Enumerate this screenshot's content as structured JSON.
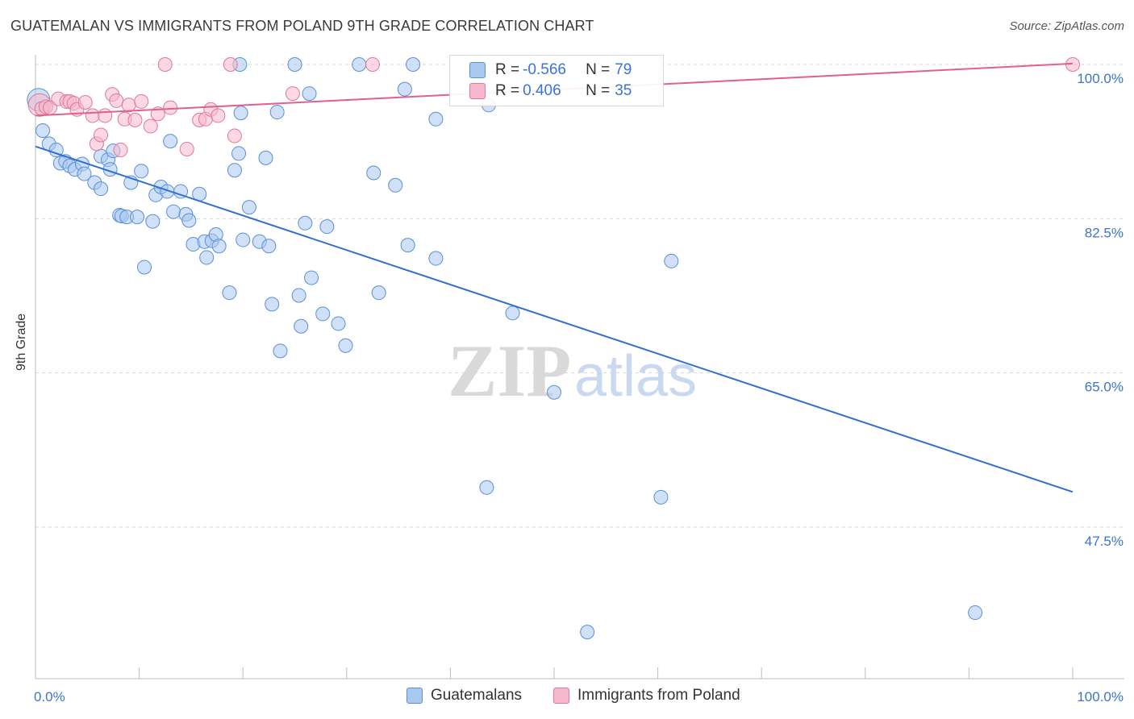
{
  "title": "GUATEMALAN VS IMMIGRANTS FROM POLAND 9TH GRADE CORRELATION CHART",
  "source": "Source: ZipAtlas.com",
  "watermark": {
    "zip": "ZIP",
    "atlas": "atlas"
  },
  "legend_top": [
    {
      "r_label": "R =",
      "r_value": "-0.566",
      "n_label": "N =",
      "n_value": "79",
      "color": "#a9c8f0",
      "stroke": "#5a8fd6"
    },
    {
      "r_label": "R =",
      "r_value": "0.406",
      "n_label": "N =",
      "n_value": "35",
      "color": "#f7b8cc",
      "stroke": "#e07898"
    }
  ],
  "legend_bottom": [
    {
      "label": "Guatemalans",
      "color": "#a9c8f0",
      "stroke": "#5a8fd6"
    },
    {
      "label": "Immigrants from Poland",
      "color": "#f7b8cc",
      "stroke": "#e07898"
    }
  ],
  "chart_data": {
    "type": "scatter",
    "title": "GUATEMALAN VS IMMIGRANTS FROM POLAND 9TH GRADE CORRELATION CHART",
    "xlabel": "",
    "ylabel": "9th Grade",
    "xlim": [
      0,
      100
    ],
    "ylim": [
      32,
      102
    ],
    "x_tick_labels": [
      "0.0%",
      "100.0%"
    ],
    "y_ticks": [
      {
        "value": 100,
        "label": "100.0%"
      },
      {
        "value": 82.5,
        "label": "82.5%"
      },
      {
        "value": 65,
        "label": "65.0%"
      },
      {
        "value": 47.5,
        "label": "47.5%"
      }
    ],
    "grid": true,
    "series": [
      {
        "name": "Guatemalans",
        "color": "#5a8fd6",
        "fill": "#a9c8f0",
        "trend": {
          "x": [
            0,
            100
          ],
          "y": [
            90.7,
            51.5
          ],
          "color": "#2f6fd0"
        },
        "points": [
          [
            0.3,
            96.0
          ],
          [
            0.7,
            92.5
          ],
          [
            1.3,
            91.0
          ],
          [
            2.0,
            90.3
          ],
          [
            2.4,
            88.8
          ],
          [
            2.9,
            89.0
          ],
          [
            3.3,
            88.5
          ],
          [
            3.8,
            88.1
          ],
          [
            4.5,
            88.7
          ],
          [
            4.7,
            87.6
          ],
          [
            5.7,
            86.6
          ],
          [
            6.3,
            85.9
          ],
          [
            6.3,
            89.6
          ],
          [
            7.0,
            89.2
          ],
          [
            7.2,
            88.1
          ],
          [
            7.5,
            90.2
          ],
          [
            8.1,
            82.9
          ],
          [
            8.3,
            82.8
          ],
          [
            8.8,
            82.7
          ],
          [
            9.2,
            86.6
          ],
          [
            9.8,
            82.7
          ],
          [
            10.2,
            87.9
          ],
          [
            10.5,
            77.0
          ],
          [
            11.3,
            82.2
          ],
          [
            11.6,
            85.2
          ],
          [
            12.1,
            86.1
          ],
          [
            12.7,
            85.6
          ],
          [
            13.0,
            91.3
          ],
          [
            13.3,
            83.3
          ],
          [
            14.0,
            85.6
          ],
          [
            14.5,
            83.0
          ],
          [
            14.8,
            82.3
          ],
          [
            15.2,
            79.6
          ],
          [
            15.8,
            85.3
          ],
          [
            16.3,
            79.9
          ],
          [
            16.5,
            78.1
          ],
          [
            17.0,
            80.0
          ],
          [
            17.4,
            80.7
          ],
          [
            17.7,
            79.4
          ],
          [
            18.7,
            74.1
          ],
          [
            19.2,
            88.0
          ],
          [
            19.6,
            89.9
          ],
          [
            19.7,
            100.0
          ],
          [
            19.8,
            94.5
          ],
          [
            20.0,
            80.1
          ],
          [
            20.6,
            83.8
          ],
          [
            21.6,
            79.9
          ],
          [
            22.2,
            89.4
          ],
          [
            22.5,
            79.4
          ],
          [
            22.8,
            72.8
          ],
          [
            23.3,
            94.6
          ],
          [
            23.6,
            67.5
          ],
          [
            25.0,
            100.0
          ],
          [
            25.4,
            73.8
          ],
          [
            25.6,
            70.3
          ],
          [
            26.0,
            82.0
          ],
          [
            26.4,
            96.7
          ],
          [
            26.6,
            75.8
          ],
          [
            27.7,
            71.7
          ],
          [
            28.1,
            81.6
          ],
          [
            29.2,
            70.6
          ],
          [
            29.9,
            68.1
          ],
          [
            31.2,
            100.0
          ],
          [
            32.6,
            87.7
          ],
          [
            33.1,
            74.1
          ],
          [
            34.7,
            86.3
          ],
          [
            35.6,
            97.2
          ],
          [
            35.9,
            79.5
          ],
          [
            36.4,
            100.0
          ],
          [
            38.6,
            78.0
          ],
          [
            38.6,
            93.8
          ],
          [
            43.7,
            95.4
          ],
          [
            43.5,
            52.0
          ],
          [
            46.0,
            71.8
          ],
          [
            50.0,
            62.8
          ],
          [
            53.2,
            35.6
          ],
          [
            60.3,
            50.9
          ],
          [
            61.3,
            77.7
          ],
          [
            90.6,
            37.8
          ]
        ]
      },
      {
        "name": "Immigrants from Poland",
        "color": "#e07898",
        "fill": "#f7b8cc",
        "trend": {
          "x": [
            0,
            100
          ],
          "y": [
            94.2,
            100.1
          ],
          "color": "#e06090"
        },
        "points": [
          [
            0.4,
            95.4
          ],
          [
            0.6,
            95.0
          ],
          [
            1.0,
            95.2
          ],
          [
            1.4,
            95.1
          ],
          [
            2.2,
            96.1
          ],
          [
            3.0,
            95.8
          ],
          [
            3.3,
            95.8
          ],
          [
            3.7,
            95.6
          ],
          [
            4.0,
            94.9
          ],
          [
            4.8,
            95.7
          ],
          [
            5.5,
            94.2
          ],
          [
            5.9,
            91.0
          ],
          [
            6.3,
            92.0
          ],
          [
            6.7,
            94.2
          ],
          [
            7.4,
            96.6
          ],
          [
            7.8,
            95.9
          ],
          [
            8.2,
            90.3
          ],
          [
            8.6,
            93.8
          ],
          [
            9.0,
            95.4
          ],
          [
            9.6,
            93.7
          ],
          [
            10.2,
            95.8
          ],
          [
            11.1,
            93.0
          ],
          [
            11.8,
            94.4
          ],
          [
            12.5,
            100.0
          ],
          [
            13.0,
            95.1
          ],
          [
            14.6,
            90.4
          ],
          [
            15.8,
            93.7
          ],
          [
            16.4,
            93.8
          ],
          [
            16.9,
            94.9
          ],
          [
            17.6,
            94.2
          ],
          [
            18.8,
            100.0
          ],
          [
            19.2,
            91.9
          ],
          [
            24.8,
            96.7
          ],
          [
            32.5,
            100.0
          ],
          [
            100.0,
            100.0
          ]
        ]
      }
    ]
  }
}
